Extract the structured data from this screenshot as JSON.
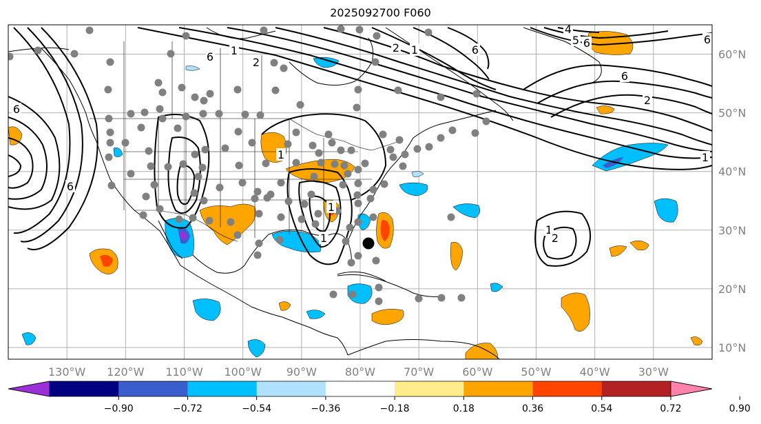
{
  "title": "2025092700 F060",
  "map": {
    "lon_range": [
      -140,
      -20
    ],
    "lat_range": [
      8,
      65
    ],
    "grid": true,
    "lon_ticks": [
      "130°W",
      "120°W",
      "110°W",
      "100°W",
      "90°W",
      "80°W",
      "70°W",
      "60°W",
      "50°W",
      "40°W",
      "30°W"
    ],
    "lat_ticks": [
      "10°N",
      "20°N",
      "30°N",
      "40°N",
      "50°N",
      "60°N"
    ],
    "contour_labels": [
      "6",
      "6",
      "2",
      "1",
      "1",
      "2",
      "6",
      "6",
      "4",
      "5",
      "6",
      "2",
      "6",
      "1",
      "1",
      "1",
      "1",
      "2",
      "1",
      "6"
    ]
  },
  "colorbar": {
    "extend": "both",
    "tick_labels": [
      "−0.90",
      "−0.72",
      "−0.54",
      "−0.36",
      "−0.18",
      "0.18",
      "0.36",
      "0.54",
      "0.72",
      "0.90"
    ],
    "colors": [
      "#9b30d9",
      "#000080",
      "#3a5fcd",
      "#00bfff",
      "#b0e2ff",
      "#ffffff",
      "#ffec8b",
      "#ffa500",
      "#ff4500",
      "#b22222",
      "#ff82ab"
    ]
  },
  "palette": {
    "orange": "#ffa500",
    "red": "#ff4500",
    "cyan": "#00bfff",
    "blue": "#3a5fcd",
    "purple": "#9b30d9",
    "station": "#808080",
    "grid": "#b0b0b0",
    "axis_label": "#808080"
  }
}
